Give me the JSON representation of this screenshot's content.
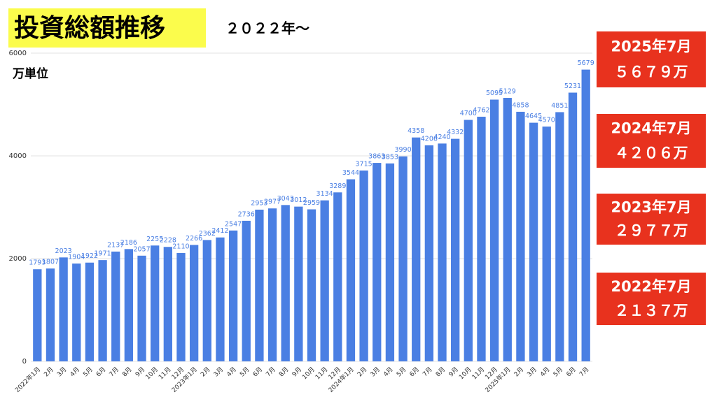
{
  "chart_data": {
    "type": "bar",
    "title": "投資総額推移",
    "subtitle": "２０２２年〜",
    "y_axis_label": "万単位",
    "categories": [
      "2022年1月",
      "2月",
      "3月",
      "4月",
      "5月",
      "6月",
      "7月",
      "8月",
      "9月",
      "10月",
      "11月",
      "12月",
      "2023年1月",
      "2月",
      "3月",
      "4月",
      "5月",
      "6月",
      "7月",
      "8月",
      "9月",
      "10月",
      "11月",
      "12月",
      "2024年1月",
      "2月",
      "3月",
      "4月",
      "5月",
      "6月",
      "7月",
      "8月",
      "9月",
      "10月",
      "11月",
      "12月",
      "2025年1月",
      "2月",
      "3月",
      "4月",
      "5月",
      "6月",
      "7月"
    ],
    "values": [
      1793,
      1807,
      2023,
      1904,
      1922,
      1971,
      2137,
      2186,
      2057,
      2255,
      2228,
      2110,
      2266,
      2362,
      2412,
      2547,
      2736,
      2953,
      2977,
      3043,
      3012,
      2959,
      3134,
      3289,
      3544,
      3715,
      3863,
      3853,
      3990,
      4358,
      4206,
      4240,
      4332,
      4700,
      4762,
      5095,
      5129,
      4858,
      4645,
      4570,
      4851,
      5231,
      5679
    ],
    "color": "#4a7fe3",
    "ylim": [
      0,
      6000
    ],
    "yticks": [
      0,
      2000,
      4000,
      6000
    ],
    "grid": true,
    "annotations": [
      {
        "date": "2025年7月",
        "amount": "５６７９万"
      },
      {
        "date": "2024年7月",
        "amount": "４２０６万"
      },
      {
        "date": "2023年7月",
        "amount": "２９７７万"
      },
      {
        "date": "2022年7月",
        "amount": "２１３７万"
      }
    ]
  }
}
